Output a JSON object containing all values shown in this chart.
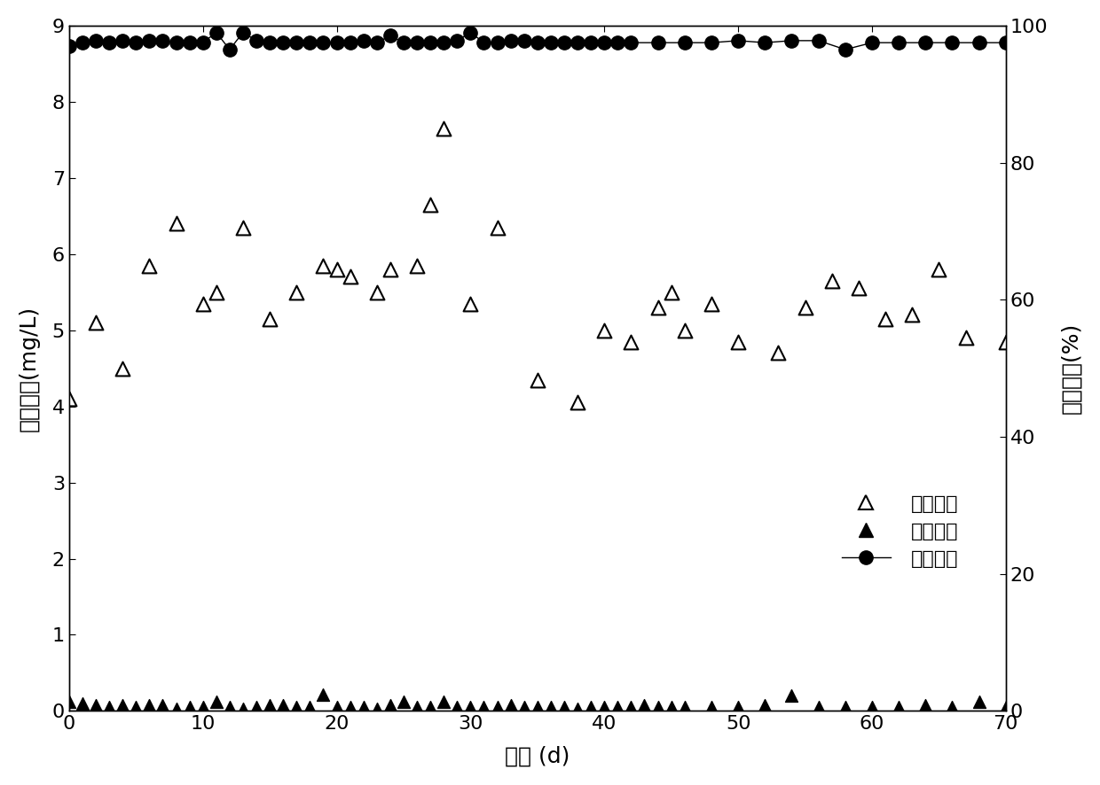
{
  "inlet_tp_x": [
    0,
    2,
    4,
    6,
    8,
    10,
    11,
    13,
    15,
    17,
    19,
    20,
    21,
    23,
    24,
    26,
    27,
    28,
    30,
    32,
    35,
    38,
    40,
    42,
    44,
    45,
    46,
    48,
    50,
    53,
    55,
    57,
    59,
    61,
    63,
    65,
    67,
    70
  ],
  "inlet_tp_y": [
    4.1,
    5.1,
    4.5,
    5.85,
    6.4,
    5.35,
    5.5,
    6.35,
    5.15,
    5.5,
    5.85,
    5.8,
    5.7,
    5.5,
    5.8,
    5.85,
    6.65,
    7.65,
    5.35,
    6.35,
    4.35,
    4.05,
    5.0,
    4.85,
    5.3,
    5.5,
    5.0,
    5.35,
    4.85,
    4.7,
    5.3,
    5.65,
    5.55,
    5.15,
    5.2,
    5.8,
    4.9,
    4.85
  ],
  "outlet_tp_x": [
    0,
    1,
    2,
    3,
    4,
    5,
    6,
    7,
    8,
    9,
    10,
    11,
    12,
    13,
    14,
    15,
    16,
    17,
    18,
    19,
    20,
    21,
    22,
    23,
    24,
    25,
    26,
    27,
    28,
    29,
    30,
    31,
    32,
    33,
    34,
    35,
    36,
    37,
    38,
    39,
    40,
    41,
    42,
    43,
    44,
    45,
    46,
    48,
    50,
    52,
    54,
    56,
    58,
    60,
    62,
    64,
    66,
    68,
    70
  ],
  "outlet_tp_y": [
    0.12,
    0.1,
    0.08,
    0.05,
    0.08,
    0.05,
    0.07,
    0.08,
    0.03,
    0.05,
    0.05,
    0.12,
    0.05,
    0.03,
    0.05,
    0.07,
    0.08,
    0.05,
    0.05,
    0.22,
    0.05,
    0.05,
    0.05,
    0.03,
    0.08,
    0.12,
    0.05,
    0.05,
    0.12,
    0.05,
    0.05,
    0.05,
    0.05,
    0.08,
    0.05,
    0.05,
    0.05,
    0.05,
    0.03,
    0.05,
    0.05,
    0.05,
    0.05,
    0.08,
    0.05,
    0.05,
    0.05,
    0.05,
    0.05,
    0.08,
    0.2,
    0.05,
    0.05,
    0.05,
    0.05,
    0.08,
    0.05,
    0.12,
    0.05
  ],
  "efficiency_x": [
    0,
    1,
    2,
    3,
    4,
    5,
    6,
    7,
    8,
    9,
    10,
    11,
    12,
    13,
    14,
    15,
    16,
    17,
    18,
    19,
    20,
    21,
    22,
    23,
    24,
    25,
    26,
    27,
    28,
    29,
    30,
    31,
    32,
    33,
    34,
    35,
    36,
    37,
    38,
    39,
    40,
    41,
    42,
    44,
    46,
    48,
    50,
    52,
    54,
    56,
    58,
    60,
    62,
    64,
    66,
    68,
    70
  ],
  "efficiency_y": [
    97.0,
    97.5,
    97.8,
    97.5,
    97.8,
    97.5,
    97.8,
    97.8,
    97.5,
    97.5,
    97.5,
    99.0,
    96.5,
    99.0,
    97.8,
    97.5,
    97.5,
    97.5,
    97.5,
    97.5,
    97.5,
    97.5,
    97.8,
    97.5,
    98.5,
    97.5,
    97.5,
    97.5,
    97.5,
    97.8,
    99.0,
    97.5,
    97.5,
    97.8,
    97.8,
    97.5,
    97.5,
    97.5,
    97.5,
    97.5,
    97.5,
    97.5,
    97.5,
    97.5,
    97.5,
    97.5,
    97.8,
    97.5,
    97.8,
    97.8,
    96.5,
    97.5,
    97.5,
    97.5,
    97.5,
    97.5,
    97.5
  ],
  "xlabel": "时间 (d)",
  "ylabel_left": "总磷浓度(mg/L)",
  "ylabel_right": "除磷效率(%)",
  "legend_inlet": "进水总磷",
  "legend_outlet": "出水总磷",
  "legend_eff": "除磷效率",
  "xlim": [
    0,
    70
  ],
  "ylim_left": [
    0,
    9
  ],
  "ylim_right": [
    0,
    100
  ],
  "xticks": [
    0,
    10,
    20,
    30,
    40,
    50,
    60,
    70
  ],
  "yticks_left": [
    0,
    1,
    2,
    3,
    4,
    5,
    6,
    7,
    8,
    9
  ],
  "yticks_right": [
    0,
    20,
    40,
    60,
    80,
    100
  ]
}
